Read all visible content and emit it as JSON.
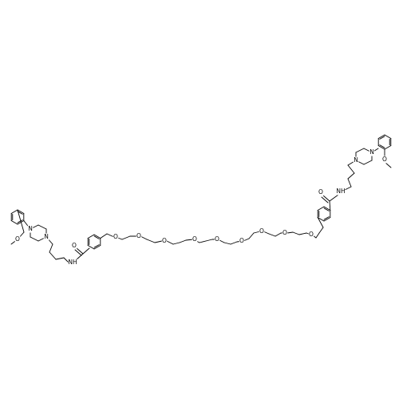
{
  "structure": {
    "atom_labels": {
      "oxygen": "O",
      "nitrogen": "N",
      "amide_nh": "NH"
    }
  }
}
